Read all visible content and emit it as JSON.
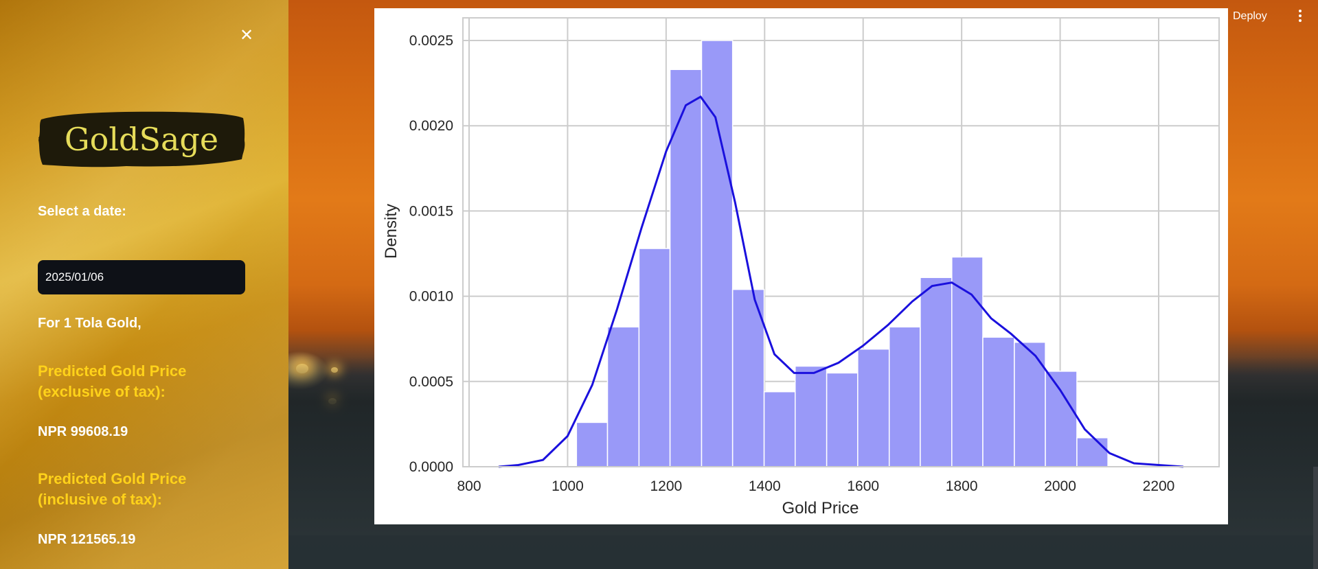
{
  "app": {
    "logo_text": "GoldSage",
    "close_icon": "close-icon"
  },
  "sidebar": {
    "select_date_label": "Select a date:",
    "date_value": "2025/01/06",
    "unit_label": "For 1 Tola Gold,",
    "excl_tax_label": "Predicted Gold Price (exclusive of tax):",
    "excl_tax_value": "NPR 99608.19",
    "incl_tax_label": "Predicted Gold Price (inclusive of tax):",
    "incl_tax_value": "NPR 121565.19"
  },
  "header": {
    "deploy_label": "Deploy",
    "menu_icon": "more-vertical-icon"
  },
  "colors": {
    "bar_fill": "#9999f8",
    "kde_line": "#1a10dd",
    "gold_text": "#ffd21a",
    "logo_text": "#e6dc5a"
  },
  "chart_data": {
    "type": "bar",
    "subtype": "histogram-with-kde",
    "xlabel": "Gold Price",
    "ylabel": "Density",
    "xlim": [
      800,
      2250
    ],
    "ylim": [
      0,
      0.0025
    ],
    "grid": true,
    "xticks": [
      "800",
      "1000",
      "1200",
      "1400",
      "1600",
      "1800",
      "2000",
      "2200"
    ],
    "yticks": [
      "0.0000",
      "0.0005",
      "0.0010",
      "0.0015",
      "0.0020",
      "0.0025"
    ],
    "bin_edges": [
      1018,
      1081,
      1145,
      1208,
      1272,
      1335,
      1399,
      1462,
      1526,
      1589,
      1653,
      1716,
      1780,
      1843,
      1907,
      1970,
      2034,
      2097
    ],
    "values": [
      0.00026,
      0.00082,
      0.00128,
      0.00233,
      0.0025,
      0.00104,
      0.00044,
      0.00059,
      0.00055,
      0.00069,
      0.00082,
      0.00111,
      0.00123,
      0.00076,
      0.00073,
      0.00056,
      0.00017
    ],
    "kde": {
      "x": [
        860,
        900,
        950,
        1000,
        1050,
        1100,
        1150,
        1200,
        1240,
        1270,
        1300,
        1340,
        1380,
        1420,
        1460,
        1500,
        1550,
        1600,
        1650,
        1700,
        1740,
        1780,
        1820,
        1860,
        1900,
        1950,
        2000,
        2050,
        2100,
        2150,
        2200,
        2250
      ],
      "y": [
        0.0,
        1e-05,
        4e-05,
        0.00018,
        0.00048,
        0.00092,
        0.0014,
        0.00185,
        0.00212,
        0.00217,
        0.00205,
        0.00155,
        0.00098,
        0.00066,
        0.00055,
        0.00055,
        0.00061,
        0.00071,
        0.00083,
        0.00097,
        0.00106,
        0.00108,
        0.00101,
        0.00087,
        0.00078,
        0.00065,
        0.00045,
        0.00022,
        8e-05,
        2e-05,
        1e-05,
        0.0
      ]
    }
  }
}
